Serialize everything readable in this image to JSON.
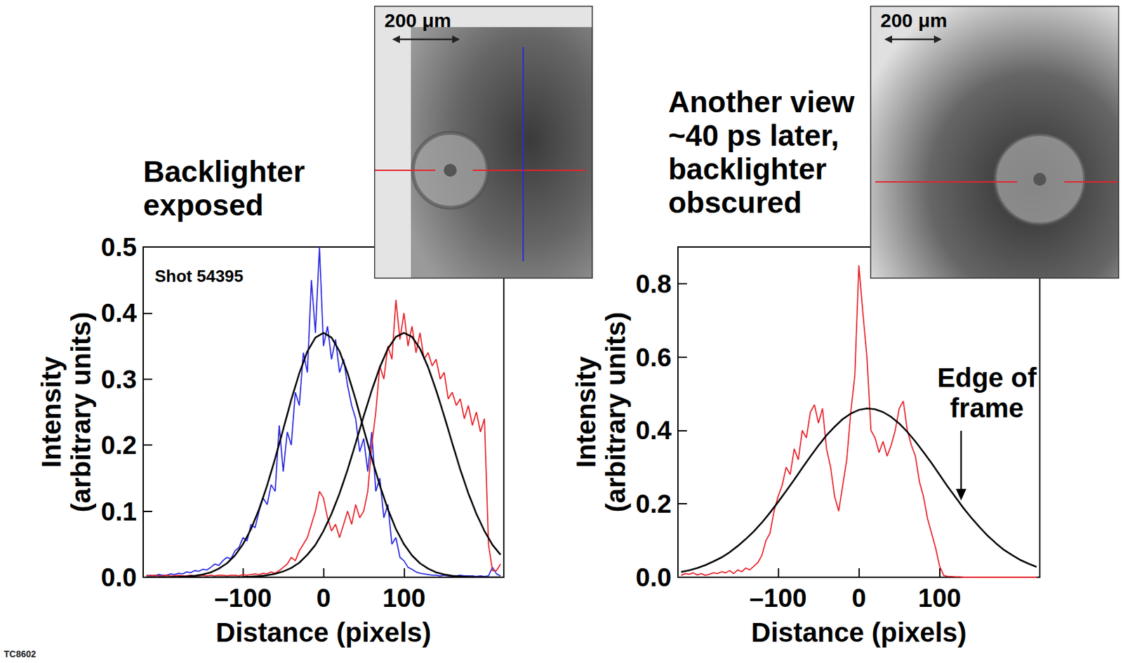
{
  "footer": "TC8602",
  "chart_data": [
    {
      "type": "line",
      "title": "Backlighter exposed",
      "annotations": [
        "Shot 54395"
      ],
      "inset": {
        "scale_label": "200 μm"
      },
      "x_label": "Distance (pixels)",
      "y_label": "Intensity (arbitrary units)",
      "xlim": [
        -224,
        224
      ],
      "xticks": [
        {
          "value": -100,
          "label": "–100"
        },
        0,
        100
      ],
      "ylim": [
        0,
        0.5
      ],
      "yticks": [
        {
          "value": 0,
          "label": "0.0"
        },
        0.1,
        0.2,
        0.3,
        0.4,
        0.5
      ],
      "grid": false,
      "x": [
        -220,
        -215,
        -210,
        -205,
        -200,
        -195,
        -190,
        -185,
        -180,
        -175,
        -170,
        -165,
        -160,
        -155,
        -150,
        -145,
        -140,
        -135,
        -130,
        -125,
        -120,
        -115,
        -110,
        -105,
        -100,
        -95,
        -90,
        -85,
        -80,
        -75,
        -70,
        -65,
        -60,
        -55,
        -50,
        -45,
        -40,
        -35,
        -30,
        -25,
        -20,
        -15,
        -10,
        -5,
        0,
        5,
        10,
        15,
        20,
        25,
        30,
        35,
        40,
        45,
        50,
        55,
        60,
        65,
        70,
        75,
        80,
        85,
        90,
        95,
        100,
        105,
        110,
        115,
        120,
        125,
        130,
        135,
        140,
        145,
        150,
        155,
        160,
        165,
        170,
        175,
        180,
        185,
        190,
        195,
        200,
        205,
        210,
        215,
        220
      ],
      "series": [
        {
          "color": "#2a2ae0",
          "values": [
            0.002,
            0.003,
            0.002,
            0.004,
            0.003,
            0.003,
            0.005,
            0.004,
            0.006,
            0.005,
            0.008,
            0.007,
            0.01,
            0.009,
            0.012,
            0.011,
            0.015,
            0.02,
            0.018,
            0.025,
            0.03,
            0.028,
            0.04,
            0.045,
            0.06,
            0.055,
            0.08,
            0.075,
            0.1,
            0.12,
            0.11,
            0.14,
            0.13,
            0.23,
            0.16,
            0.22,
            0.2,
            0.28,
            0.26,
            0.34,
            0.31,
            0.45,
            0.37,
            0.5,
            0.35,
            0.38,
            0.33,
            0.36,
            0.31,
            0.33,
            0.29,
            0.26,
            0.24,
            0.19,
            0.21,
            0.16,
            0.22,
            0.13,
            0.15,
            0.09,
            0.11,
            0.05,
            0.06,
            0.03,
            0.025,
            0.015,
            0.012,
            0.008,
            0.006,
            0.005,
            0.004,
            0.003,
            0.003,
            0.002,
            0.003,
            0.002,
            0.002,
            0.002,
            0.003,
            0.002,
            0.002,
            0.002,
            0.001,
            0.002,
            0.001,
            0.002,
            0.015,
            0.005,
            0.002
          ]
        },
        {
          "color": "#e8232b",
          "values": [
            0.003,
            0.002,
            0.003,
            0.002,
            0.002,
            0.003,
            0.002,
            0.002,
            0.003,
            0.002,
            0.002,
            0.003,
            0.002,
            0.002,
            0.003,
            0.002,
            0.003,
            0.002,
            0.003,
            0.003,
            0.002,
            0.003,
            0.003,
            0.002,
            0.004,
            0.003,
            0.004,
            0.005,
            0.004,
            0.006,
            0.005,
            0.008,
            0.006,
            0.01,
            0.015,
            0.02,
            0.03,
            0.025,
            0.04,
            0.05,
            0.06,
            0.08,
            0.1,
            0.13,
            0.12,
            0.09,
            0.07,
            0.08,
            0.06,
            0.08,
            0.1,
            0.08,
            0.11,
            0.09,
            0.1,
            0.13,
            0.2,
            0.25,
            0.32,
            0.3,
            0.35,
            0.33,
            0.42,
            0.36,
            0.4,
            0.35,
            0.38,
            0.34,
            0.37,
            0.33,
            0.34,
            0.32,
            0.33,
            0.3,
            0.31,
            0.27,
            0.28,
            0.26,
            0.27,
            0.24,
            0.26,
            0.23,
            0.25,
            0.22,
            0.24,
            0.05,
            0.01,
            0.01,
            0.02
          ]
        },
        {
          "color": "#000000",
          "x": [
            -220,
            -210,
            -200,
            -190,
            -180,
            -170,
            -160,
            -150,
            -140,
            -130,
            -120,
            -110,
            -100,
            -90,
            -80,
            -70,
            -60,
            -50,
            -40,
            -30,
            -20,
            -10,
            0,
            10,
            20,
            30,
            40,
            50,
            60,
            70,
            80,
            90,
            100,
            110,
            120,
            130,
            140,
            150,
            160,
            170,
            180,
            190,
            200,
            210,
            220
          ],
          "values": [
            0,
            0,
            0.0001,
            0.0003,
            0.0006,
            0.0011,
            0.0022,
            0.0041,
            0.0073,
            0.013,
            0.021,
            0.033,
            0.05,
            0.073,
            0.103,
            0.139,
            0.18,
            0.224,
            0.269,
            0.309,
            0.342,
            0.363,
            0.37,
            0.363,
            0.342,
            0.309,
            0.269,
            0.224,
            0.18,
            0.139,
            0.103,
            0.073,
            0.05,
            0.033,
            0.021,
            0.013,
            0.0073,
            0.0041,
            0.0022,
            0.0011,
            0.0006,
            0.0003,
            0.0001,
            0,
            0
          ]
        },
        {
          "color": "#000000",
          "x": [
            -220,
            -210,
            -200,
            -190,
            -180,
            -170,
            -160,
            -150,
            -140,
            -130,
            -120,
            -110,
            -100,
            -90,
            -80,
            -70,
            -60,
            -50,
            -40,
            -30,
            -20,
            -10,
            0,
            10,
            20,
            30,
            40,
            50,
            60,
            70,
            80,
            90,
            100,
            110,
            120,
            130,
            140,
            150,
            160,
            170,
            180,
            190,
            200,
            210,
            220
          ],
          "values": [
            0,
            0,
            0,
            0,
            0,
            0,
            0,
            0,
            0,
            0.0001,
            0.0001,
            0.0003,
            0.0005,
            0.0009,
            0.0017,
            0.003,
            0.0052,
            0.0087,
            0.014,
            0.022,
            0.034,
            0.049,
            0.07,
            0.096,
            0.127,
            0.163,
            0.203,
            0.244,
            0.283,
            0.318,
            0.346,
            0.364,
            0.37,
            0.364,
            0.346,
            0.318,
            0.283,
            0.244,
            0.203,
            0.163,
            0.127,
            0.096,
            0.07,
            0.049,
            0.034
          ]
        }
      ]
    },
    {
      "type": "line",
      "title": "Another view ~40 ps later, backlighter obscured",
      "annotations": [
        "Edge of frame"
      ],
      "inset": {
        "scale_label": "200 μm"
      },
      "x_label": "Distance (pixels)",
      "y_label": "Intensity (arbitrary units)",
      "xlim": [
        -224,
        224
      ],
      "xticks": [
        {
          "value": -100,
          "label": "–100"
        },
        0,
        100
      ],
      "ylim": [
        0,
        0.9
      ],
      "yticks": [
        {
          "value": 0,
          "label": "0.0"
        },
        0.2,
        0.4,
        0.6,
        0.8
      ],
      "grid": false,
      "x": [
        -220,
        -215,
        -210,
        -205,
        -200,
        -195,
        -190,
        -185,
        -180,
        -175,
        -170,
        -165,
        -160,
        -155,
        -150,
        -145,
        -140,
        -135,
        -130,
        -125,
        -120,
        -115,
        -110,
        -105,
        -100,
        -95,
        -90,
        -85,
        -80,
        -75,
        -70,
        -65,
        -60,
        -55,
        -50,
        -45,
        -40,
        -35,
        -30,
        -25,
        -20,
        -15,
        -10,
        -5,
        0,
        5,
        10,
        15,
        20,
        25,
        30,
        35,
        40,
        45,
        50,
        55,
        60,
        65,
        70,
        75,
        80,
        85,
        90,
        95,
        100,
        105,
        110,
        115,
        120,
        125,
        130,
        135,
        140,
        145,
        150,
        155,
        160,
        165,
        170,
        175,
        180,
        185,
        190,
        195,
        200,
        205,
        210,
        215,
        220
      ],
      "series": [
        {
          "color": "#e8232b",
          "values": [
            0.005,
            0.01,
            0.008,
            0.012,
            0.006,
            0.01,
            0.005,
            0.008,
            0.012,
            0.01,
            0.015,
            0.012,
            0.018,
            0.01,
            0.02,
            0.015,
            0.025,
            0.02,
            0.03,
            0.04,
            0.06,
            0.1,
            0.12,
            0.18,
            0.22,
            0.25,
            0.3,
            0.28,
            0.35,
            0.32,
            0.4,
            0.38,
            0.45,
            0.47,
            0.42,
            0.46,
            0.35,
            0.3,
            0.22,
            0.18,
            0.25,
            0.32,
            0.45,
            0.55,
            0.85,
            0.72,
            0.6,
            0.4,
            0.38,
            0.34,
            0.37,
            0.33,
            0.36,
            0.4,
            0.46,
            0.48,
            0.4,
            0.36,
            0.33,
            0.26,
            0.22,
            0.16,
            0.12,
            0.08,
            0.03,
            0.005,
            0.002,
            0.002,
            0.001,
            0.001,
            0,
            0,
            0,
            0,
            0,
            0,
            0,
            0,
            0,
            0,
            0,
            0,
            0,
            0,
            0,
            0,
            0,
            0,
            0
          ]
        },
        {
          "color": "#000000",
          "x": [
            -220,
            -210,
            -200,
            -190,
            -180,
            -170,
            -160,
            -150,
            -140,
            -130,
            -120,
            -110,
            -100,
            -90,
            -80,
            -70,
            -60,
            -50,
            -40,
            -30,
            -20,
            -10,
            0,
            10,
            20,
            30,
            40,
            50,
            60,
            70,
            80,
            90,
            100,
            110,
            120,
            130,
            140,
            150,
            160,
            170,
            180,
            190,
            200,
            210,
            220
          ],
          "values": [
            0.0143,
            0.019,
            0.025,
            0.033,
            0.043,
            0.054,
            0.068,
            0.085,
            0.104,
            0.125,
            0.149,
            0.176,
            0.205,
            0.235,
            0.266,
            0.298,
            0.329,
            0.359,
            0.387,
            0.41,
            0.431,
            0.446,
            0.456,
            0.46,
            0.458,
            0.45,
            0.437,
            0.419,
            0.396,
            0.37,
            0.341,
            0.311,
            0.279,
            0.247,
            0.217,
            0.187,
            0.16,
            0.135,
            0.112,
            0.092,
            0.074,
            0.06,
            0.047,
            0.037,
            0.028
          ]
        }
      ]
    }
  ]
}
